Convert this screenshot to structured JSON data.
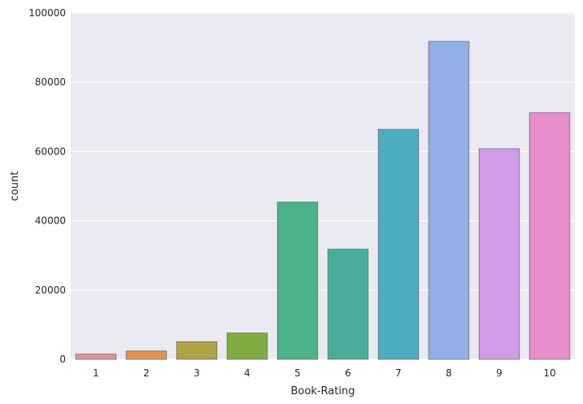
{
  "chart_data": {
    "type": "bar",
    "title": "",
    "xlabel": "Book-Rating",
    "ylabel": "count",
    "categories": [
      "1",
      "2",
      "3",
      "4",
      "5",
      "6",
      "7",
      "8",
      "9",
      "10"
    ],
    "values": [
      1500,
      2400,
      5100,
      7600,
      45400,
      31800,
      66400,
      91800,
      60800,
      71200
    ],
    "colors": [
      "#e8919c",
      "#e2924f",
      "#b0a244",
      "#7eac41",
      "#4ab286",
      "#4aad9c",
      "#4cadc2",
      "#93afe8",
      "#d19be6",
      "#e78dcb"
    ],
    "ylim": [
      0,
      100000
    ],
    "yticks": [
      0,
      20000,
      40000,
      60000,
      80000,
      100000
    ],
    "ytick_labels": [
      "0",
      "20000",
      "40000",
      "60000",
      "80000",
      "100000"
    ],
    "grid": true,
    "background": "#eaeaf2",
    "grid_color": "#ffffff",
    "bar_edge_color": "#6e6e6e"
  }
}
